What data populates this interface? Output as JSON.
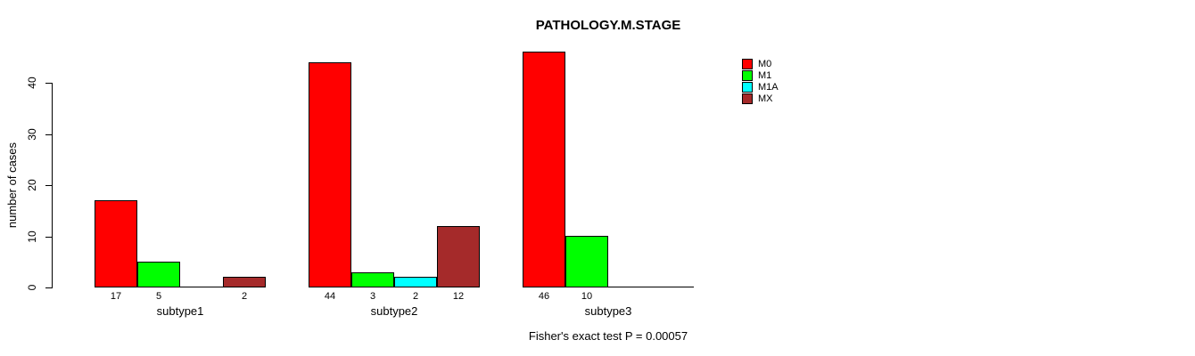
{
  "chart_data": {
    "type": "bar",
    "title": "PATHOLOGY.M.STAGE",
    "ylabel": "number of cases",
    "xlabel": "",
    "ylim": [
      0,
      40
    ],
    "yticks": [
      0,
      10,
      20,
      30,
      40
    ],
    "categories": [
      "subtype1",
      "subtype2",
      "subtype3"
    ],
    "series": [
      {
        "name": "M0",
        "color": "#ff0000",
        "values": [
          17,
          44,
          46
        ]
      },
      {
        "name": "M1",
        "color": "#00ff00",
        "values": [
          5,
          3,
          10
        ]
      },
      {
        "name": "M1A",
        "color": "#00ffff",
        "values": [
          0,
          2,
          0
        ]
      },
      {
        "name": "MX",
        "color": "#a52a2a",
        "values": [
          2,
          12,
          0
        ]
      }
    ],
    "bar_value_labels": [
      [
        "17",
        "44",
        "46"
      ],
      [
        "5",
        "3",
        "10"
      ],
      [
        "",
        "2",
        ""
      ],
      [
        "2",
        "12",
        ""
      ]
    ],
    "legend": {
      "position": "topright",
      "entries": [
        "M0",
        "M1",
        "M1A",
        "MX"
      ]
    },
    "annotation": "Fisher's exact test P = 0.00057",
    "grid": false,
    "background": "#ffffff",
    "axis_color": "#000000"
  }
}
